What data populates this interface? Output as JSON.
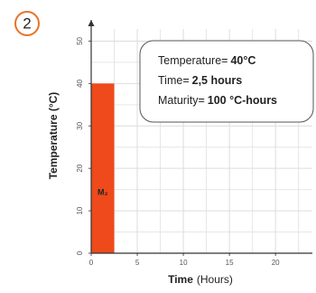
{
  "panel_label": "2",
  "chart_data": {
    "type": "histogram",
    "bins": [
      0,
      2.5
    ],
    "values": [
      40
    ],
    "color": "#ee4a1c",
    "bar_label": "M₂",
    "xlabel": {
      "bold": "Time",
      "rest": "(Hours)"
    },
    "ylabel": "Temperature (°C)",
    "xlim": [
      0,
      24
    ],
    "xticks": [
      0,
      5,
      10,
      15,
      20
    ],
    "ylim": [
      0,
      55
    ],
    "yticks": [
      0,
      10,
      20,
      30,
      40,
      50
    ],
    "grid": true,
    "annotation": [
      {
        "label": "Temperature=",
        "value": "40°C"
      },
      {
        "label": "Time=",
        "value": "2,5 hours"
      },
      {
        "label": "Maturity=",
        "value": "100 °C-hours"
      }
    ]
  }
}
